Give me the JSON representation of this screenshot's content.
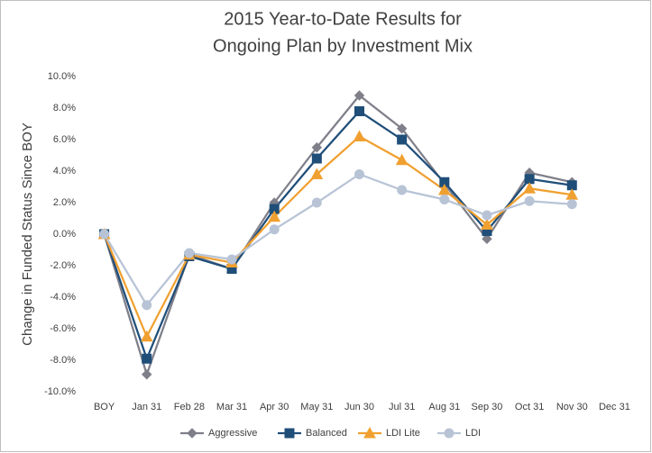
{
  "chart_data": {
    "type": "line",
    "title": [
      "2015 Year-to-Date Results for",
      "Ongoing Plan by Investment Mix"
    ],
    "y_label": "Change in Funded Status Since BOY",
    "categories": [
      "BOY",
      "Jan 31",
      "Feb 28",
      "Mar 31",
      "Apr 30",
      "May 31",
      "Jun 30",
      "Jul 31",
      "Aug 31",
      "Sep 30",
      "Oct 31",
      "Nov 30",
      "Dec 31"
    ],
    "series": [
      {
        "name": "Aggressive",
        "color": "#7f7f8a",
        "marker": "diamond",
        "values": [
          0,
          -8.9,
          -1.3,
          -2.2,
          2.0,
          5.5,
          8.8,
          6.7,
          3.2,
          -0.3,
          3.9,
          3.3,
          null
        ]
      },
      {
        "name": "Balanced",
        "color": "#1f4e79",
        "marker": "square",
        "values": [
          0,
          -7.9,
          -1.4,
          -2.2,
          1.6,
          4.8,
          7.8,
          6.0,
          3.3,
          0.2,
          3.5,
          3.1,
          null
        ]
      },
      {
        "name": "LDI Lite",
        "color": "#f0a030",
        "marker": "triangle",
        "values": [
          0,
          -6.5,
          -1.3,
          -1.8,
          1.1,
          3.8,
          6.2,
          4.7,
          2.8,
          0.6,
          2.9,
          2.5,
          null
        ]
      },
      {
        "name": "LDI",
        "color": "#b8c4d6",
        "marker": "circle",
        "values": [
          0,
          -4.5,
          -1.2,
          -1.6,
          0.3,
          2.0,
          3.8,
          2.8,
          2.2,
          1.2,
          2.1,
          1.9,
          null
        ]
      }
    ],
    "ylim": [
      -10,
      10
    ],
    "yticks": [
      {
        "value": 10,
        "label": "10.0%"
      },
      {
        "value": 8,
        "label": "8.0%"
      },
      {
        "value": 6,
        "label": "6.0%"
      },
      {
        "value": 4,
        "label": "4.0%"
      },
      {
        "value": 2,
        "label": "2.0%"
      },
      {
        "value": 0,
        "label": "0.0%"
      },
      {
        "value": -2,
        "label": "-2.0%"
      },
      {
        "value": -4,
        "label": "-4.0%"
      },
      {
        "value": -6,
        "label": "-6.0%"
      },
      {
        "value": -8,
        "label": "-8.0%"
      },
      {
        "value": -10,
        "label": "-10.0%"
      }
    ],
    "grid": false,
    "legend": "bottom"
  }
}
